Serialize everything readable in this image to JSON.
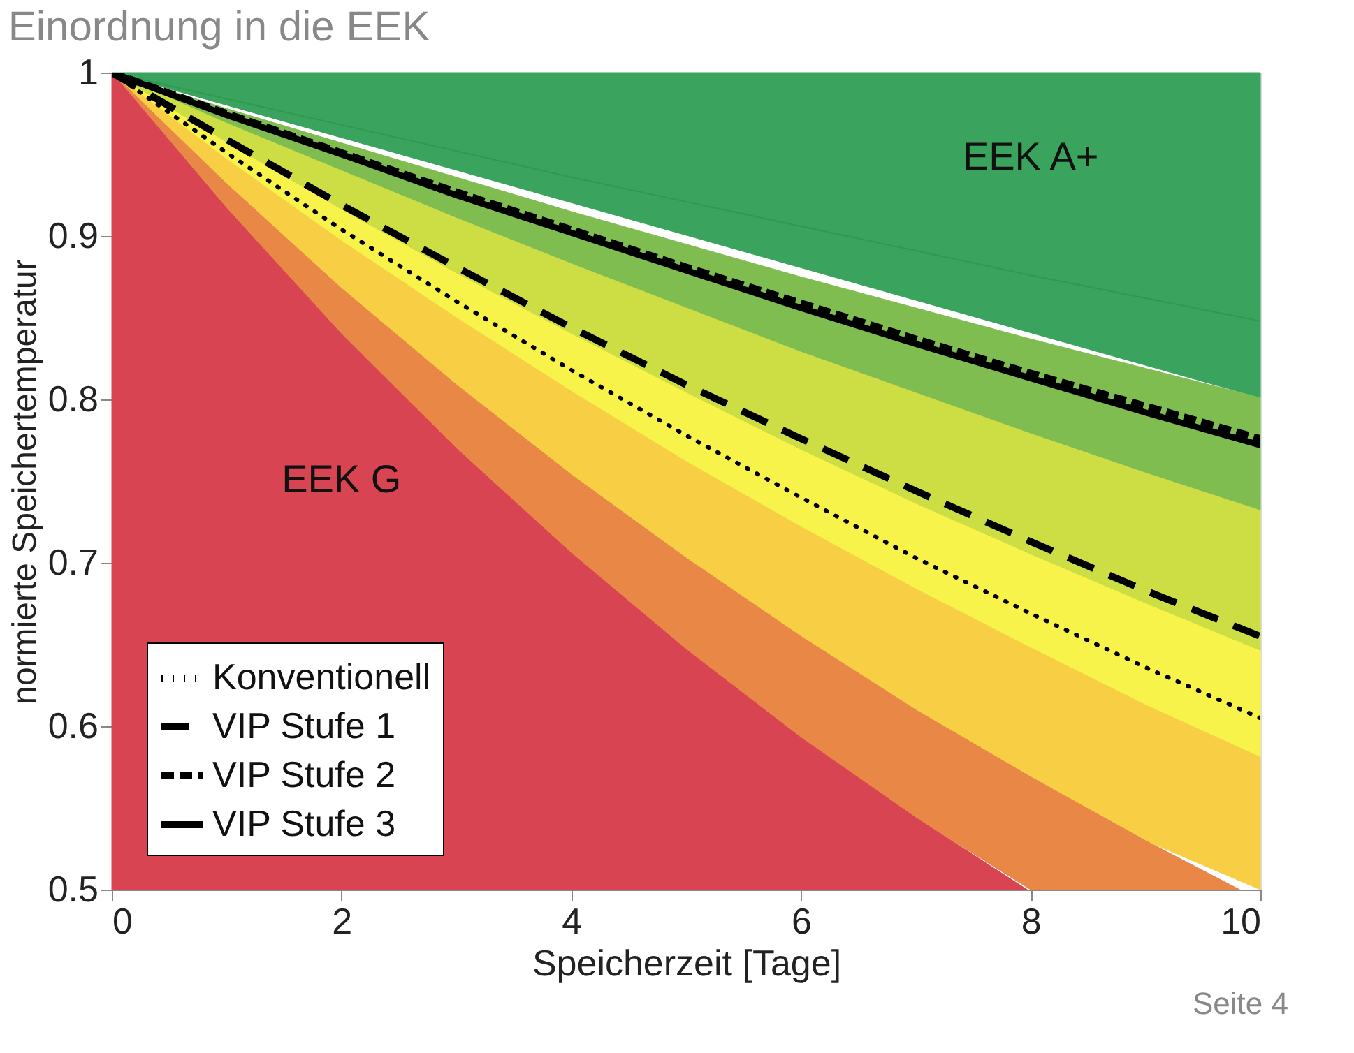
{
  "chart_data": {
    "type": "area",
    "title": "Einordnung in die EEK",
    "xlabel": "Speicherzeit [Tage]",
    "ylabel": "normierte Speichertemperatur",
    "xlim": [
      0,
      10
    ],
    "ylim": [
      0.5,
      1
    ],
    "xticks": [
      0,
      2,
      4,
      6,
      8,
      10
    ],
    "yticks": [
      0.5,
      0.6,
      0.7,
      0.8,
      0.9,
      1
    ],
    "grid": false,
    "legend": "bottom left",
    "series": [
      {
        "color": "#3aa35d",
        "x": [
          0,
          10
        ],
        "values": [
          1,
          1
        ]
      },
      {
        "color": "#80bd50",
        "x": [
          0,
          1,
          2,
          3,
          4,
          5,
          6,
          7,
          8,
          9,
          10
        ],
        "values": [
          1,
          0.978,
          0.957,
          0.936,
          0.915,
          0.895,
          0.875,
          0.856,
          0.837,
          0.819,
          0.801
        ]
      },
      {
        "color": "#cddd44",
        "x": [
          0,
          1,
          2,
          3,
          4,
          5,
          6,
          7,
          8,
          9,
          10
        ],
        "values": [
          1,
          0.969,
          0.94,
          0.911,
          0.883,
          0.856,
          0.829,
          0.804,
          0.779,
          0.755,
          0.732
        ]
      },
      {
        "color": "#f8f34a",
        "x": [
          0,
          1,
          2,
          3,
          4,
          5,
          6,
          7,
          8,
          9,
          10
        ],
        "values": [
          1,
          0.957,
          0.916,
          0.877,
          0.84,
          0.804,
          0.769,
          0.736,
          0.705,
          0.675,
          0.646
        ]
      },
      {
        "color": "#f8ce45",
        "x": [
          0,
          1,
          2,
          3,
          4,
          5,
          6,
          7,
          8,
          9,
          10
        ],
        "values": [
          1,
          0.947,
          0.897,
          0.85,
          0.805,
          0.762,
          0.722,
          0.684,
          0.648,
          0.613,
          0.581
        ]
      },
      {
        "color": "#e98747",
        "x": [
          0,
          1,
          2,
          3,
          4,
          5,
          6,
          7,
          8,
          9,
          9.82
        ],
        "values": [
          1,
          0.932,
          0.868,
          0.809,
          0.754,
          0.703,
          0.655,
          0.61,
          0.569,
          0.53,
          0.5
        ]
      },
      {
        "color": "#d94452",
        "x": [
          0,
          1,
          2,
          3,
          4,
          5,
          6,
          7,
          7.97
        ],
        "values": [
          1,
          0.917,
          0.84,
          0.77,
          0.706,
          0.647,
          0.593,
          0.544,
          0.5
        ]
      },
      {
        "type": "line",
        "color": "#2e9a4f",
        "line_style": "solid",
        "x": [
          0,
          1,
          2,
          3,
          4,
          5,
          6,
          7,
          8,
          9,
          10
        ],
        "values": [
          1,
          0.984,
          0.968,
          0.952,
          0.936,
          0.921,
          0.906,
          0.891,
          0.876,
          0.862,
          0.848
        ]
      },
      {
        "name": "Konventionell",
        "type": "line",
        "color": "#000000",
        "line_style": "dotted",
        "x": [
          0,
          1,
          2,
          3,
          4,
          5,
          6,
          7,
          8,
          9,
          10
        ],
        "values": [
          1,
          0.951,
          0.904,
          0.86,
          0.818,
          0.778,
          0.74,
          0.703,
          0.669,
          0.636,
          0.605
        ]
      },
      {
        "name": "VIP Stufe 1",
        "type": "line",
        "color": "#000000",
        "line_style": "dashed",
        "x": [
          0,
          1,
          2,
          3,
          4,
          5,
          6,
          7,
          8,
          9,
          10
        ],
        "values": [
          1,
          0.959,
          0.919,
          0.881,
          0.844,
          0.809,
          0.776,
          0.744,
          0.713,
          0.683,
          0.655
        ]
      },
      {
        "name": "VIP Stufe 2",
        "type": "line",
        "color": "#000000",
        "line_style": "dashed",
        "x": [
          0,
          1,
          2,
          3,
          4,
          5,
          6,
          7,
          8,
          9,
          10
        ],
        "values": [
          1,
          0.975,
          0.951,
          0.927,
          0.904,
          0.881,
          0.859,
          0.837,
          0.816,
          0.796,
          0.776
        ]
      },
      {
        "name": "VIP Stufe 3",
        "type": "line",
        "color": "#000000",
        "line_style": "solid",
        "x": [
          0,
          1,
          2,
          3,
          4,
          5,
          6,
          7,
          8,
          9,
          10
        ],
        "values": [
          1,
          0.974,
          0.95,
          0.925,
          0.902,
          0.879,
          0.856,
          0.834,
          0.813,
          0.792,
          0.772
        ]
      }
    ],
    "annotations": [
      "EEK A+",
      "EEK G",
      "Seite 4"
    ]
  }
}
